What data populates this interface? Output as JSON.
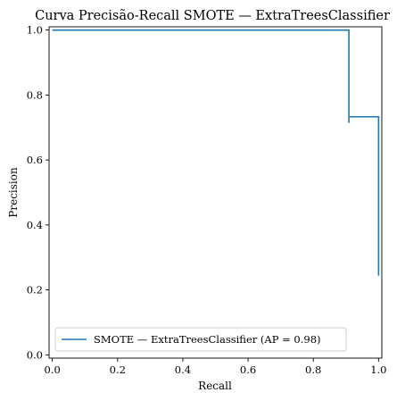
{
  "chart_data": {
    "type": "line",
    "title": "Curva Precisão-Recall SMOTE — ExtraTreesClassifier",
    "xlabel": "Recall",
    "ylabel": "Precision",
    "xlim": [
      -0.01,
      1.01
    ],
    "ylim": [
      -0.01,
      1.01
    ],
    "xticks": [
      0.0,
      0.2,
      0.4,
      0.6,
      0.8,
      1.0
    ],
    "xtick_labels": [
      "0.0",
      "0.2",
      "0.4",
      "0.6",
      "0.8",
      "1.0"
    ],
    "yticks": [
      0.0,
      0.2,
      0.4,
      0.6,
      0.8,
      1.0
    ],
    "ytick_labels": [
      "0.0",
      "0.2",
      "0.4",
      "0.6",
      "0.8",
      "1.0"
    ],
    "grid": false,
    "legend_position": "lower-left",
    "series": [
      {
        "name": "SMOTE — ExtraTreesClassifier (AP = 0.98)",
        "color": "#1f77b4",
        "drawstyle": "steps-post",
        "x": [
          0.0,
          0.909,
          0.909,
          0.909,
          1.0,
          1.0
        ],
        "y": [
          1.0,
          1.0,
          0.714,
          0.733,
          0.733,
          0.244
        ]
      }
    ]
  }
}
